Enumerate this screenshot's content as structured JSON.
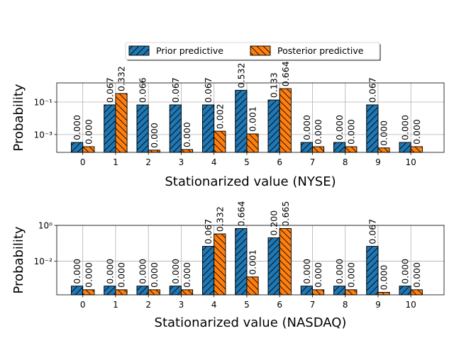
{
  "legend": {
    "prior_label": "Prior predictive",
    "posterior_label": "Posterior predictive"
  },
  "colors": {
    "prior": "#1f77b4",
    "posterior": "#ff7f0e",
    "grid": "#b0b0b0",
    "edge": "#000000"
  },
  "chart_data": [
    {
      "type": "bar",
      "yscale": "log",
      "xlabel": "Stationarized value (NYSE)",
      "ylabel": "Probability",
      "categories": [
        "0",
        "1",
        "2",
        "3",
        "4",
        "5",
        "6",
        "7",
        "8",
        "9",
        "10"
      ],
      "ytick_labels": [
        "10⁻³",
        "10⁻¹"
      ],
      "ytick_values": [
        0.001,
        0.1
      ],
      "ylim": [
        8e-05,
        1.5
      ],
      "grid": true,
      "legend_position": "top-center",
      "series": [
        {
          "name": "Prior predictive",
          "hatch": "/",
          "values": [
            0.00033,
            0.067,
            0.066,
            0.067,
            0.067,
            0.532,
            0.133,
            0.00033,
            0.00033,
            0.067,
            0.00033
          ],
          "labels": [
            "0.000",
            "0.067",
            "0.066",
            "0.067",
            "0.067",
            "0.532",
            "0.133",
            "0.000",
            "0.000",
            "0.067",
            "0.000"
          ]
        },
        {
          "name": "Posterior predictive",
          "hatch": "\\",
          "values": [
            0.00018,
            0.332,
            0.00011,
            0.00012,
            0.0016,
            0.0011,
            0.664,
            0.00018,
            0.00018,
            0.00015,
            0.00018
          ],
          "labels": [
            "0.000",
            "0.332",
            "0.000",
            "0.000",
            "0.002",
            "0.001",
            "0.664",
            "0.000",
            "0.000",
            "0.000",
            "0.000"
          ]
        }
      ]
    },
    {
      "type": "bar",
      "yscale": "log",
      "xlabel": "Stationarized value (NASDAQ)",
      "ylabel": "Probability",
      "categories": [
        "0",
        "1",
        "2",
        "3",
        "4",
        "5",
        "6",
        "7",
        "8",
        "9",
        "10"
      ],
      "ytick_labels": [
        "10⁻²",
        "10⁰"
      ],
      "ytick_values": [
        0.01,
        1
      ],
      "ylim": [
        0.00013,
        1
      ],
      "grid": true,
      "series": [
        {
          "name": "Prior predictive",
          "hatch": "/",
          "values": [
            0.0004,
            0.0004,
            0.0004,
            0.0004,
            0.067,
            0.664,
            0.2,
            0.0004,
            0.0004,
            0.067,
            0.0004
          ],
          "labels": [
            "0.000",
            "0.000",
            "0.000",
            "0.000",
            "0.067",
            "0.664",
            "0.200",
            "0.000",
            "0.000",
            "0.067",
            "0.000"
          ]
        },
        {
          "name": "Posterior predictive",
          "hatch": "\\",
          "values": [
            0.00025,
            0.00025,
            0.00025,
            0.00025,
            0.332,
            0.0013,
            0.665,
            0.00025,
            0.00025,
            0.00018,
            0.00025
          ],
          "labels": [
            "0.000",
            "0.000",
            "0.000",
            "0.000",
            "0.332",
            "0.001",
            "0.665",
            "0.000",
            "0.000",
            "0.000",
            "0.000"
          ]
        }
      ]
    }
  ]
}
